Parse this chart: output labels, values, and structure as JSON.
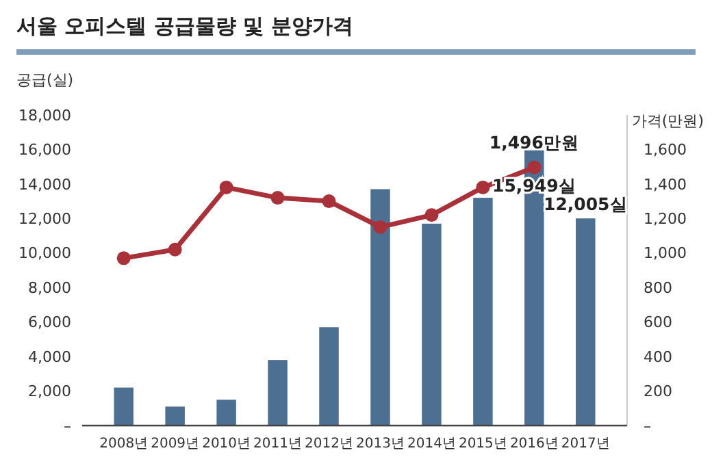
{
  "chart_data": {
    "type": "bar",
    "title": "서울 오피스텔 공급물량 및 분양가격",
    "ylabel": "공급(실)",
    "y2label": "가격(만원)",
    "categories": [
      "2008년",
      "2009년",
      "2010년",
      "2011년",
      "2012년",
      "2013년",
      "2014년",
      "2015년",
      "2016년",
      "2017년"
    ],
    "series": [
      {
        "color": "#4d6f91",
        "values": [
          2200,
          1100,
          1500,
          3800,
          5700,
          13700,
          11700,
          13200,
          15949,
          12005
        ],
        "value_labels": [
          null,
          null,
          null,
          null,
          null,
          null,
          null,
          null,
          "15,949실",
          "12,005실"
        ]
      },
      {
        "type": "line",
        "axis": "y2",
        "color": "#a8313a",
        "marker": "circle",
        "values": [
          970,
          1020,
          1380,
          1320,
          1300,
          1150,
          1220,
          1380,
          1496,
          null
        ],
        "value_labels": [
          null,
          null,
          null,
          null,
          null,
          null,
          null,
          null,
          "1,496만원",
          null
        ]
      }
    ],
    "ylim": [
      0,
      18000
    ],
    "yticks": [
      {
        "value": 0,
        "label": "–"
      },
      {
        "value": 2000,
        "label": "2,000"
      },
      {
        "value": 4000,
        "label": "4,000"
      },
      {
        "value": 6000,
        "label": "6,000"
      },
      {
        "value": 8000,
        "label": "8,000"
      },
      {
        "value": 10000,
        "label": "10,000"
      },
      {
        "value": 12000,
        "label": "12,000"
      },
      {
        "value": 14000,
        "label": "14,000"
      },
      {
        "value": 16000,
        "label": "16,000"
      },
      {
        "value": 18000,
        "label": "18,000"
      }
    ],
    "y2lim": [
      0,
      1800
    ],
    "y2ticks": [
      {
        "value": 0,
        "label": "–"
      },
      200,
      400,
      600,
      800,
      {
        "value": 1000,
        "label": "1,000"
      },
      {
        "value": 1200,
        "label": "1,200"
      },
      {
        "value": 1400,
        "label": "1,400"
      },
      {
        "value": 1600,
        "label": "1,600"
      }
    ],
    "grid": false
  }
}
